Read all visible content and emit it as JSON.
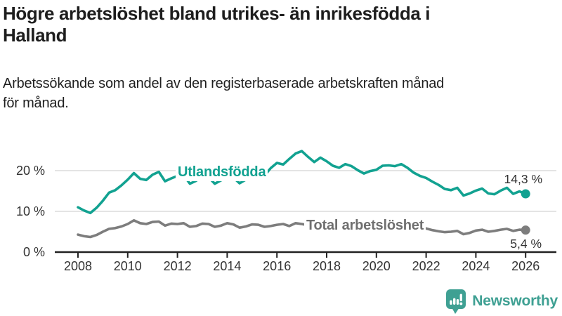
{
  "header": {
    "title_lines": [
      "Högre arbetslöshet bland utrikes- än inrikesfödda i",
      "Halland"
    ],
    "subtitle_lines": [
      "Arbetssökande som andel av den registerbaserade arbetskraften månad",
      "för månad."
    ]
  },
  "chart_data": {
    "type": "line",
    "x_unit": "year",
    "xlim": [
      2007.1,
      2026.9
    ],
    "ylim": [
      0,
      26
    ],
    "grid": "horizontal",
    "yticks": [
      {
        "value": 0,
        "label": "0 %"
      },
      {
        "value": 10,
        "label": "10 %"
      },
      {
        "value": 20,
        "label": "20 %"
      }
    ],
    "xticks": [
      {
        "value": 2008,
        "label": "2008"
      },
      {
        "value": 2010,
        "label": "2010"
      },
      {
        "value": 2012,
        "label": "2012"
      },
      {
        "value": 2014,
        "label": "2014"
      },
      {
        "value": 2016,
        "label": "2016"
      },
      {
        "value": 2018,
        "label": "2018"
      },
      {
        "value": 2020,
        "label": "2020"
      },
      {
        "value": 2022,
        "label": "2022"
      },
      {
        "value": 2024,
        "label": "2024"
      },
      {
        "value": 2026,
        "label": "2026"
      }
    ],
    "series": [
      {
        "name": "Utlandsfödda",
        "color": "#12a291",
        "label_color": "#12a291",
        "end_label": "14,3 %",
        "end_value": 14.3,
        "points": [
          [
            2008,
            11.0
          ],
          [
            2008.25,
            10.2
          ],
          [
            2008.5,
            9.6
          ],
          [
            2008.75,
            10.9
          ],
          [
            2009,
            12.6
          ],
          [
            2009.25,
            14.6
          ],
          [
            2009.5,
            15.2
          ],
          [
            2009.75,
            16.4
          ],
          [
            2010,
            17.8
          ],
          [
            2010.25,
            19.4
          ],
          [
            2010.5,
            18.0
          ],
          [
            2010.75,
            17.7
          ],
          [
            2011,
            19.0
          ],
          [
            2011.25,
            19.7
          ],
          [
            2011.5,
            17.4
          ],
          [
            2011.75,
            18.1
          ],
          [
            2012,
            18.7
          ],
          [
            2012.25,
            18.9
          ],
          [
            2012.5,
            16.8
          ],
          [
            2012.75,
            17.5
          ],
          [
            2013,
            18.8
          ],
          [
            2013.25,
            18.4
          ],
          [
            2013.5,
            16.8
          ],
          [
            2013.75,
            17.6
          ],
          [
            2014,
            18.7
          ],
          [
            2014.25,
            18.3
          ],
          [
            2014.5,
            16.9
          ],
          [
            2014.75,
            17.8
          ],
          [
            2015,
            18.9
          ],
          [
            2015.25,
            19.4
          ],
          [
            2015.5,
            18.8
          ],
          [
            2015.75,
            20.6
          ],
          [
            2016,
            21.9
          ],
          [
            2016.25,
            21.5
          ],
          [
            2016.5,
            22.9
          ],
          [
            2016.75,
            24.2
          ],
          [
            2017,
            24.8
          ],
          [
            2017.25,
            23.4
          ],
          [
            2017.5,
            22.1
          ],
          [
            2017.75,
            23.2
          ],
          [
            2018,
            22.3
          ],
          [
            2018.25,
            21.2
          ],
          [
            2018.5,
            20.7
          ],
          [
            2018.75,
            21.6
          ],
          [
            2019,
            21.1
          ],
          [
            2019.25,
            20.1
          ],
          [
            2019.5,
            19.3
          ],
          [
            2019.75,
            19.9
          ],
          [
            2020,
            20.2
          ],
          [
            2020.25,
            21.2
          ],
          [
            2020.5,
            21.3
          ],
          [
            2020.75,
            21.1
          ],
          [
            2021,
            21.6
          ],
          [
            2021.25,
            20.7
          ],
          [
            2021.5,
            19.5
          ],
          [
            2021.75,
            18.7
          ],
          [
            2022,
            18.2
          ],
          [
            2022.25,
            17.3
          ],
          [
            2022.5,
            16.5
          ],
          [
            2022.75,
            15.5
          ],
          [
            2023,
            15.2
          ],
          [
            2023.25,
            15.8
          ],
          [
            2023.5,
            13.9
          ],
          [
            2023.75,
            14.4
          ],
          [
            2024,
            15.1
          ],
          [
            2024.25,
            15.6
          ],
          [
            2024.5,
            14.4
          ],
          [
            2024.75,
            14.2
          ],
          [
            2025,
            15.1
          ],
          [
            2025.25,
            15.8
          ],
          [
            2025.5,
            14.3
          ],
          [
            2025.75,
            14.9
          ],
          [
            2026,
            14.3
          ]
        ]
      },
      {
        "name": "Total arbetslöshet",
        "color": "#7d7d7d",
        "label_color": "#6f6f6f",
        "end_label": "5,4 %",
        "end_value": 5.4,
        "points": [
          [
            2008,
            4.3
          ],
          [
            2008.25,
            3.9
          ],
          [
            2008.5,
            3.7
          ],
          [
            2008.75,
            4.2
          ],
          [
            2009,
            5.0
          ],
          [
            2009.25,
            5.7
          ],
          [
            2009.5,
            5.9
          ],
          [
            2009.75,
            6.3
          ],
          [
            2010,
            6.9
          ],
          [
            2010.25,
            7.8
          ],
          [
            2010.5,
            7.1
          ],
          [
            2010.75,
            6.9
          ],
          [
            2011,
            7.4
          ],
          [
            2011.25,
            7.5
          ],
          [
            2011.5,
            6.5
          ],
          [
            2011.75,
            7.0
          ],
          [
            2012,
            6.9
          ],
          [
            2012.25,
            7.1
          ],
          [
            2012.5,
            6.2
          ],
          [
            2012.75,
            6.4
          ],
          [
            2013,
            7.0
          ],
          [
            2013.25,
            6.9
          ],
          [
            2013.5,
            6.2
          ],
          [
            2013.75,
            6.5
          ],
          [
            2014,
            7.1
          ],
          [
            2014.25,
            6.8
          ],
          [
            2014.5,
            6.0
          ],
          [
            2014.75,
            6.3
          ],
          [
            2015,
            6.8
          ],
          [
            2015.25,
            6.7
          ],
          [
            2015.5,
            6.2
          ],
          [
            2015.75,
            6.4
          ],
          [
            2016,
            6.7
          ],
          [
            2016.25,
            6.9
          ],
          [
            2016.5,
            6.4
          ],
          [
            2016.75,
            7.1
          ],
          [
            2017,
            6.9
          ],
          [
            2017.25,
            6.6
          ],
          [
            2017.5,
            6.1
          ],
          [
            2017.75,
            6.3
          ],
          [
            2018,
            6.5
          ],
          [
            2018.25,
            6.2
          ],
          [
            2018.5,
            5.8
          ],
          [
            2018.75,
            6.0
          ],
          [
            2019,
            6.2
          ],
          [
            2019.25,
            6.0
          ],
          [
            2019.5,
            5.8
          ],
          [
            2019.75,
            6.1
          ],
          [
            2020,
            6.4
          ],
          [
            2020.25,
            7.6
          ],
          [
            2020.5,
            8.0
          ],
          [
            2020.75,
            7.8
          ],
          [
            2021,
            7.9
          ],
          [
            2021.25,
            7.3
          ],
          [
            2021.5,
            6.6
          ],
          [
            2021.75,
            6.1
          ],
          [
            2022,
            5.8
          ],
          [
            2022.25,
            5.4
          ],
          [
            2022.5,
            5.1
          ],
          [
            2022.75,
            4.9
          ],
          [
            2023,
            5.0
          ],
          [
            2023.25,
            5.2
          ],
          [
            2023.5,
            4.4
          ],
          [
            2023.75,
            4.7
          ],
          [
            2024,
            5.3
          ],
          [
            2024.25,
            5.5
          ],
          [
            2024.5,
            5.0
          ],
          [
            2024.75,
            5.2
          ],
          [
            2025,
            5.5
          ],
          [
            2025.25,
            5.7
          ],
          [
            2025.5,
            5.2
          ],
          [
            2025.75,
            5.5
          ],
          [
            2026,
            5.4
          ]
        ]
      }
    ]
  },
  "footer": {
    "brand": "Newsworthy",
    "brand_color": "#3fa093",
    "logo_icon": "bar-chart-speech-bubble"
  }
}
